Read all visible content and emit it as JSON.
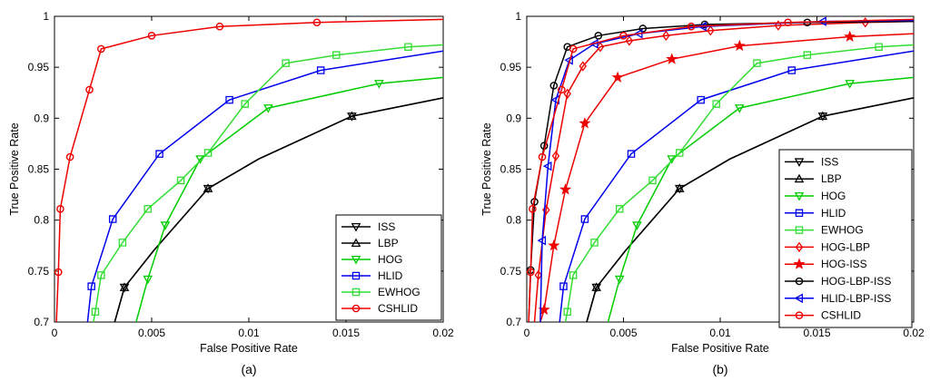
{
  "chart_data": [
    {
      "type": "line",
      "caption": "(a)",
      "xlabel": "False Positive Rate",
      "ylabel": "True Positive Rate",
      "xlim": [
        0,
        0.02
      ],
      "ylim": [
        0.7,
        1
      ],
      "xticks": [
        0,
        0.005,
        0.01,
        0.015,
        0.02
      ],
      "xtick_labels": [
        "0",
        "0.005",
        "0.01",
        "0.015",
        "0.02"
      ],
      "yticks": [
        0.7,
        0.75,
        0.8,
        0.85,
        0.9,
        0.95,
        1
      ],
      "ytick_labels": [
        "0.7",
        "0.75",
        "0.8",
        "0.85",
        "0.9",
        "0.95",
        "1"
      ],
      "grid": false,
      "legend_position": "bottom-right",
      "series": [
        {
          "name": "ISS",
          "color": "#000000",
          "marker": "tri-down",
          "x": [
            0.0031,
            0.0036,
            0.0051,
            0.0079,
            0.0105,
            0.0153,
            0.02
          ],
          "y": [
            0.7,
            0.734,
            0.77,
            0.831,
            0.86,
            0.902,
            0.92
          ],
          "mx": [
            0.0036,
            0.0079,
            0.0153
          ]
        },
        {
          "name": "LBP",
          "color": "#000000",
          "marker": "tri-up",
          "x": [
            0.0031,
            0.0036,
            0.0051,
            0.0079,
            0.0105,
            0.0153,
            0.02
          ],
          "y": [
            0.7,
            0.734,
            0.77,
            0.831,
            0.86,
            0.902,
            0.92
          ],
          "mx": [
            0.0036,
            0.0079,
            0.0153
          ]
        },
        {
          "name": "HOG",
          "color": "#00cc00",
          "marker": "tri-down",
          "x": [
            0.0042,
            0.0048,
            0.0057,
            0.0075,
            0.011,
            0.0167,
            0.02
          ],
          "y": [
            0.7,
            0.742,
            0.795,
            0.86,
            0.91,
            0.934,
            0.94
          ],
          "mx": [
            0.0048,
            0.0057,
            0.0075,
            0.011,
            0.0167
          ]
        },
        {
          "name": "HLID",
          "color": "#0000ee",
          "marker": "square",
          "x": [
            0.0017,
            0.0019,
            0.003,
            0.0054,
            0.009,
            0.0137,
            0.02
          ],
          "y": [
            0.7,
            0.735,
            0.801,
            0.865,
            0.918,
            0.947,
            0.966
          ],
          "mx": [
            0.0019,
            0.003,
            0.0054,
            0.009,
            0.0137
          ]
        },
        {
          "name": "EWHOG",
          "color": "#33dd33",
          "marker": "square",
          "x": [
            0.002,
            0.0021,
            0.0024,
            0.0035,
            0.0048,
            0.0065,
            0.0079,
            0.0098,
            0.0119,
            0.0145,
            0.0182,
            0.02
          ],
          "y": [
            0.7,
            0.71,
            0.746,
            0.778,
            0.811,
            0.839,
            0.866,
            0.914,
            0.954,
            0.962,
            0.97,
            0.972
          ],
          "mx": [
            0.0021,
            0.0024,
            0.0035,
            0.0048,
            0.0065,
            0.0079,
            0.0098,
            0.0119,
            0.0145,
            0.0182
          ]
        },
        {
          "name": "CSHLID",
          "color": "#ee0000",
          "marker": "circle",
          "x": [
            0.0001,
            0.0002,
            0.0003,
            0.0008,
            0.0018,
            0.0024,
            0.005,
            0.0085,
            0.0135,
            0.02
          ],
          "y": [
            0.7,
            0.749,
            0.811,
            0.862,
            0.928,
            0.968,
            0.981,
            0.99,
            0.994,
            0.997
          ],
          "mx": [
            0.0002,
            0.0003,
            0.0008,
            0.0018,
            0.0024,
            0.005,
            0.0085,
            0.0135
          ]
        }
      ]
    },
    {
      "type": "line",
      "caption": "(b)",
      "xlabel": "False Positive Rate",
      "ylabel": "True Positive Rate",
      "xlim": [
        0,
        0.02
      ],
      "ylim": [
        0.7,
        1
      ],
      "xticks": [
        0,
        0.005,
        0.01,
        0.015,
        0.02
      ],
      "xtick_labels": [
        "0",
        "0.005",
        "0.01",
        "0.015",
        "0.02"
      ],
      "yticks": [
        0.7,
        0.75,
        0.8,
        0.85,
        0.9,
        0.95,
        1
      ],
      "ytick_labels": [
        "0.7",
        "0.75",
        "0.8",
        "0.85",
        "0.9",
        "0.95",
        "1"
      ],
      "grid": false,
      "legend_position": "bottom-right",
      "series": [
        {
          "name": "ISS",
          "color": "#000000",
          "marker": "tri-down",
          "x": [
            0.0031,
            0.0036,
            0.0051,
            0.0079,
            0.0105,
            0.0153,
            0.02
          ],
          "y": [
            0.7,
            0.734,
            0.77,
            0.831,
            0.86,
            0.902,
            0.92
          ],
          "mx": [
            0.0036,
            0.0079,
            0.0153
          ]
        },
        {
          "name": "LBP",
          "color": "#000000",
          "marker": "tri-up",
          "x": [
            0.0031,
            0.0036,
            0.0051,
            0.0079,
            0.0105,
            0.0153,
            0.02
          ],
          "y": [
            0.7,
            0.734,
            0.77,
            0.831,
            0.86,
            0.902,
            0.92
          ],
          "mx": [
            0.0036,
            0.0079,
            0.0153
          ]
        },
        {
          "name": "HOG",
          "color": "#00cc00",
          "marker": "tri-down",
          "x": [
            0.0042,
            0.0048,
            0.0057,
            0.0075,
            0.011,
            0.0167,
            0.02
          ],
          "y": [
            0.7,
            0.742,
            0.795,
            0.86,
            0.91,
            0.934,
            0.94
          ],
          "mx": [
            0.0048,
            0.0057,
            0.0075,
            0.011,
            0.0167
          ]
        },
        {
          "name": "HLID",
          "color": "#0000ee",
          "marker": "square",
          "x": [
            0.0017,
            0.0019,
            0.003,
            0.0054,
            0.009,
            0.0137,
            0.02
          ],
          "y": [
            0.7,
            0.735,
            0.801,
            0.865,
            0.918,
            0.947,
            0.966
          ],
          "mx": [
            0.0019,
            0.003,
            0.0054,
            0.009,
            0.0137
          ]
        },
        {
          "name": "EWHOG",
          "color": "#33dd33",
          "marker": "square",
          "x": [
            0.002,
            0.0021,
            0.0024,
            0.0035,
            0.0048,
            0.0065,
            0.0079,
            0.0098,
            0.0119,
            0.0145,
            0.0182,
            0.02
          ],
          "y": [
            0.7,
            0.71,
            0.746,
            0.778,
            0.811,
            0.839,
            0.866,
            0.914,
            0.954,
            0.962,
            0.97,
            0.972
          ],
          "mx": [
            0.0021,
            0.0024,
            0.0035,
            0.0048,
            0.0065,
            0.0079,
            0.0098,
            0.0119,
            0.0145,
            0.0182
          ]
        },
        {
          "name": "HOG-LBP",
          "color": "#ee0000",
          "marker": "diamond",
          "x": [
            0.0004,
            0.0006,
            0.001,
            0.0015,
            0.0021,
            0.0029,
            0.0038,
            0.0053,
            0.0072,
            0.0095,
            0.013,
            0.0175,
            0.02
          ],
          "y": [
            0.7,
            0.746,
            0.81,
            0.863,
            0.924,
            0.951,
            0.97,
            0.976,
            0.981,
            0.986,
            0.991,
            0.994,
            0.995
          ],
          "mx": [
            0.0006,
            0.001,
            0.0015,
            0.0021,
            0.0029,
            0.0038,
            0.0053,
            0.0072,
            0.0095,
            0.013,
            0.0175
          ]
        },
        {
          "name": "HOG-ISS",
          "color": "#ee0000",
          "marker": "star",
          "x": [
            0.0007,
            0.0009,
            0.0014,
            0.002,
            0.003,
            0.0047,
            0.0075,
            0.011,
            0.0167,
            0.02
          ],
          "y": [
            0.7,
            0.712,
            0.775,
            0.83,
            0.895,
            0.94,
            0.958,
            0.971,
            0.98,
            0.983
          ],
          "mx": [
            0.0009,
            0.0014,
            0.002,
            0.003,
            0.0047,
            0.0075,
            0.011,
            0.0167
          ]
        },
        {
          "name": "HOG-LBP-ISS",
          "color": "#000000",
          "marker": "circle",
          "x": [
            0.0001,
            0.0002,
            0.0004,
            0.0009,
            0.0014,
            0.0021,
            0.0037,
            0.006,
            0.0092,
            0.0145,
            0.02
          ],
          "y": [
            0.7,
            0.751,
            0.818,
            0.873,
            0.932,
            0.97,
            0.981,
            0.988,
            0.992,
            0.994,
            0.995
          ],
          "mx": [
            0.0002,
            0.0004,
            0.0009,
            0.0014,
            0.0021,
            0.0037,
            0.006,
            0.0092,
            0.0145
          ]
        },
        {
          "name": "HLID-LBP-ISS",
          "color": "#0000ee",
          "marker": "tri-left",
          "x": [
            0.0007,
            0.0008,
            0.0011,
            0.0015,
            0.0022,
            0.0035,
            0.0058,
            0.0091,
            0.0153,
            0.02
          ],
          "y": [
            0.7,
            0.78,
            0.853,
            0.918,
            0.957,
            0.973,
            0.983,
            0.99,
            0.995,
            0.996
          ],
          "mx": [
            0.0008,
            0.0011,
            0.0015,
            0.0022,
            0.0035,
            0.0058,
            0.0091,
            0.0153
          ]
        },
        {
          "name": "CSHLID",
          "color": "#ee0000",
          "marker": "circle",
          "x": [
            0.0001,
            0.0002,
            0.0003,
            0.0008,
            0.0018,
            0.0024,
            0.005,
            0.0085,
            0.0135,
            0.02
          ],
          "y": [
            0.7,
            0.749,
            0.811,
            0.862,
            0.928,
            0.968,
            0.981,
            0.99,
            0.994,
            0.997
          ],
          "mx": [
            0.0002,
            0.0003,
            0.0008,
            0.0018,
            0.0024,
            0.005,
            0.0085,
            0.0135
          ]
        }
      ]
    }
  ]
}
